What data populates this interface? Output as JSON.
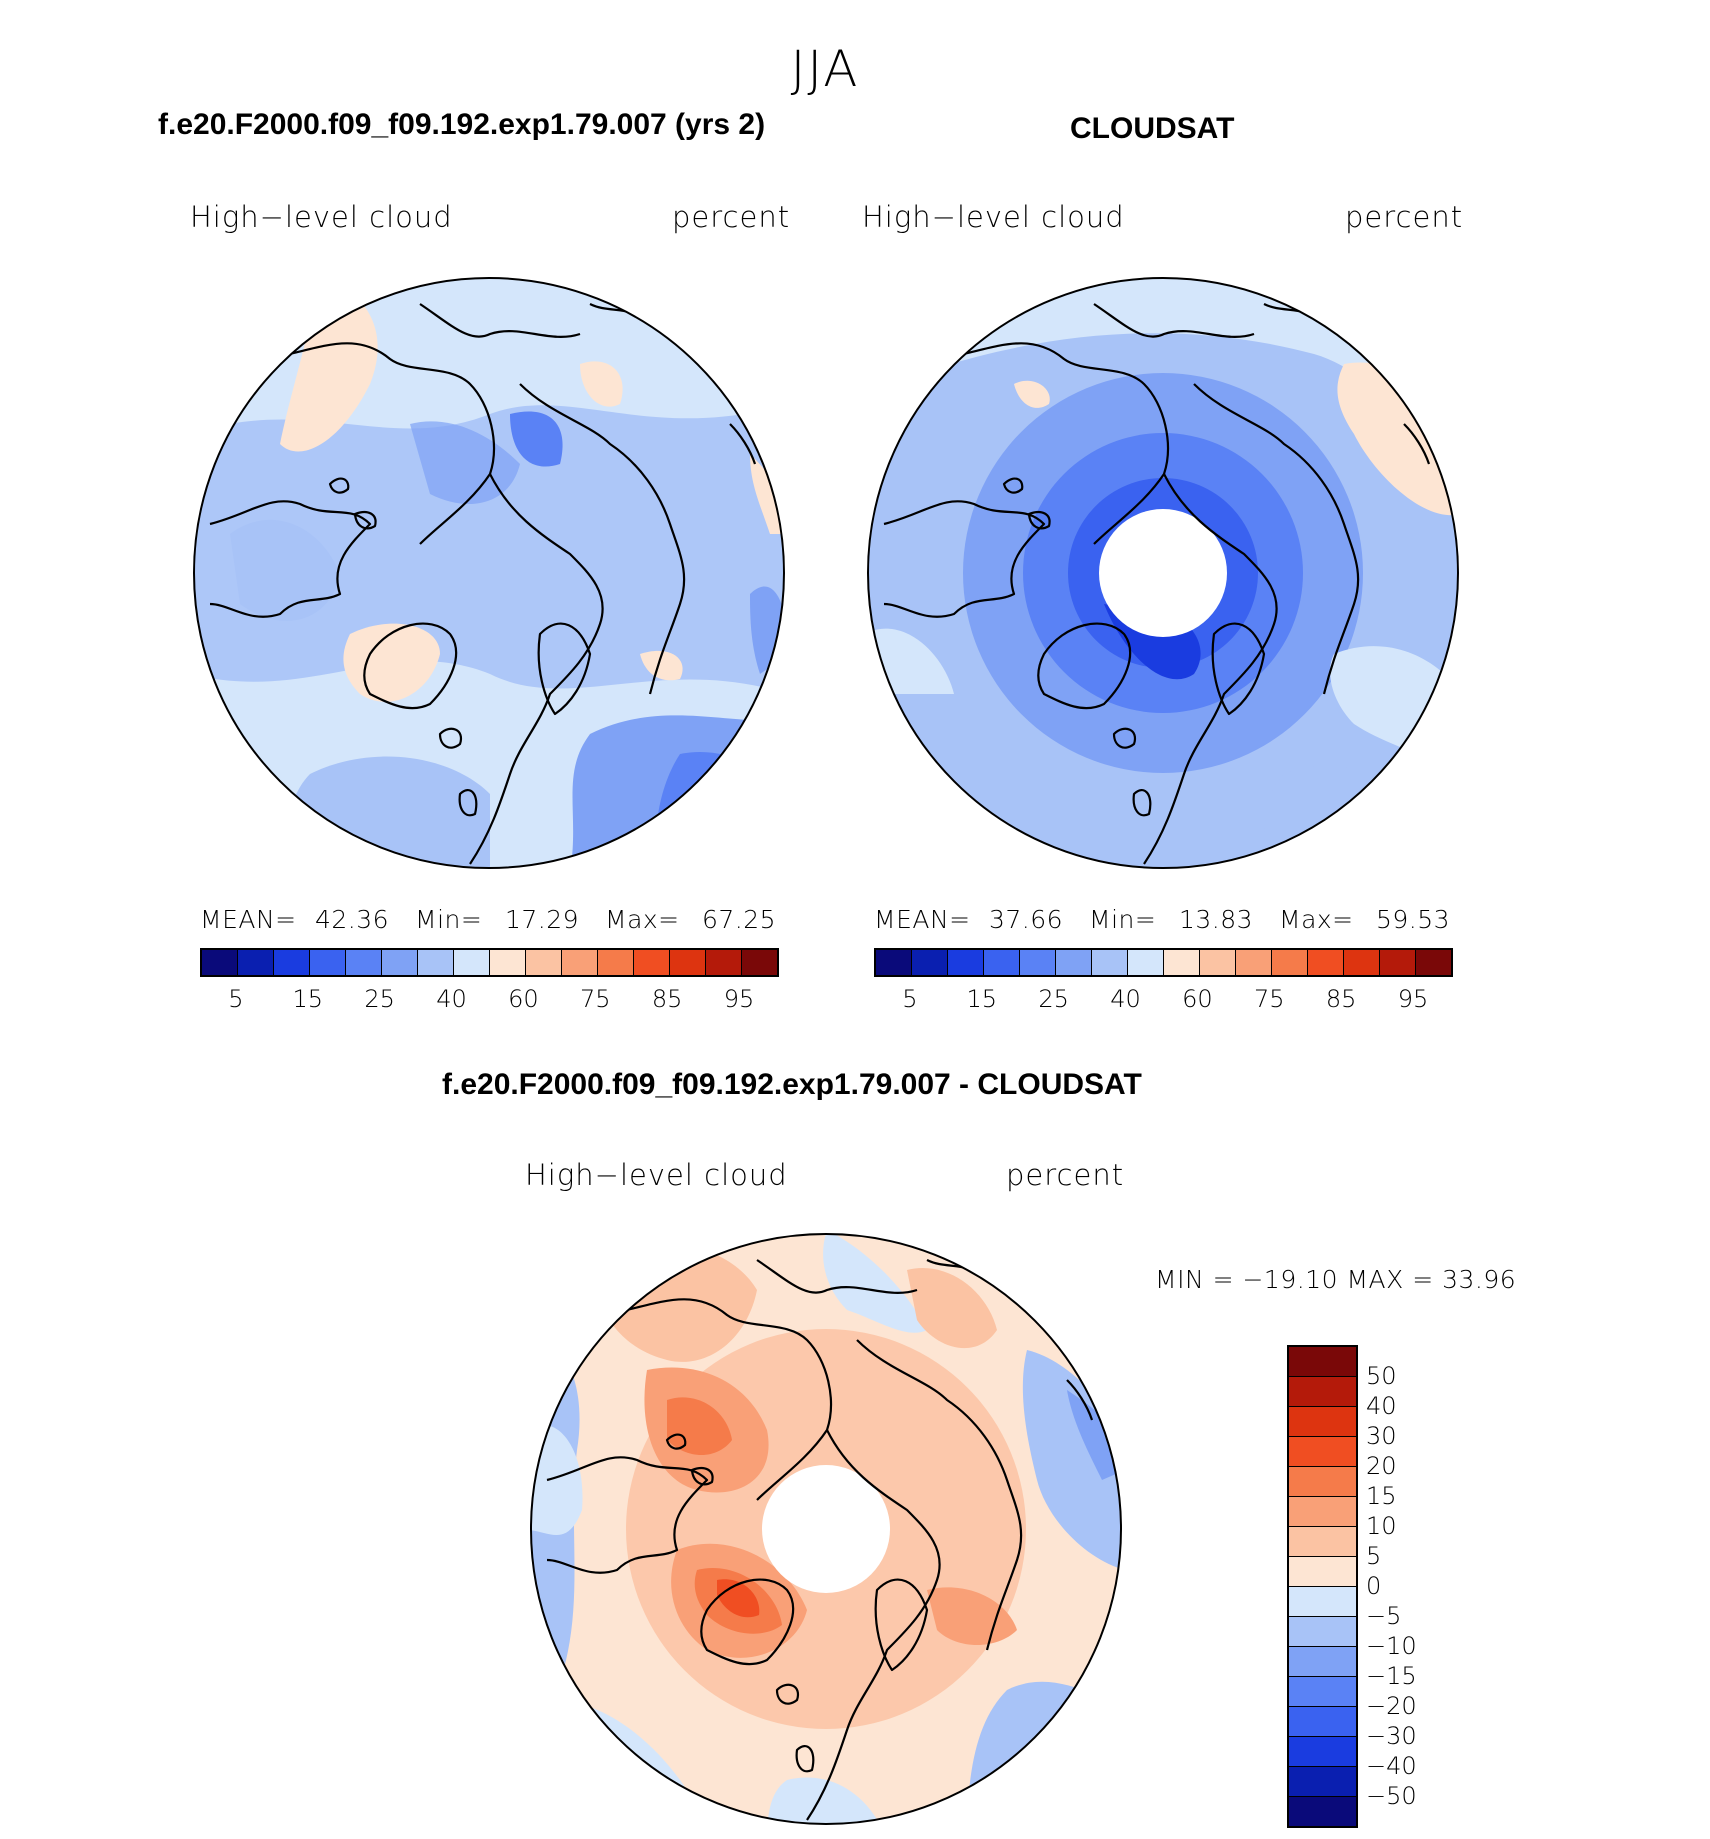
{
  "season": "JJA",
  "panels": {
    "left": {
      "title": "f.e20.F2000.f09_f09.192.exp1.79.007 (yrs 2)",
      "variable": "High−level cloud",
      "units": "percent",
      "mean_label": "MEAN=",
      "mean": "42.36",
      "min_label": "Min=",
      "min": "17.29",
      "max_label": "Max=",
      "max": "67.25"
    },
    "right": {
      "title": "CLOUDSAT",
      "variable": "High−level cloud",
      "units": "percent",
      "mean_label": "MEAN=",
      "mean": "37.66",
      "min_label": "Min=",
      "min": "13.83",
      "max_label": "Max=",
      "max": "59.53"
    },
    "diff": {
      "title": "f.e20.F2000.f09_f09.192.exp1.79.007 - CLOUDSAT",
      "variable": "High−level cloud",
      "units": "percent",
      "minmax_text": "MIN = −19.10  MAX =   33.96"
    }
  },
  "colorbar_abs": {
    "colors": [
      "#0a0a7a",
      "#0a1fb0",
      "#1a3ce0",
      "#3a62f0",
      "#5a82f5",
      "#7fa2f5",
      "#a8c3f7",
      "#d4e6fb",
      "#fde5d3",
      "#fbc3a3",
      "#f9a077",
      "#f57b4a",
      "#f04e22",
      "#dd3410",
      "#b41a0a",
      "#7a0808"
    ],
    "labels": [
      "5",
      "15",
      "25",
      "40",
      "60",
      "75",
      "85",
      "95"
    ]
  },
  "colorbar_diff": {
    "colors": [
      "#7a0808",
      "#b41a0a",
      "#dd3410",
      "#f04e22",
      "#f57b4a",
      "#f9a077",
      "#fbc3a3",
      "#fde5d3",
      "#d4e6fb",
      "#a8c3f7",
      "#7fa2f5",
      "#5a82f5",
      "#3a62f0",
      "#1a3ce0",
      "#0a1fb0",
      "#0a0a7a"
    ],
    "labels": [
      "50",
      "40",
      "30",
      "20",
      "15",
      "10",
      "5",
      "0",
      "−5",
      "−10",
      "−15",
      "−20",
      "−30",
      "−40",
      "−50"
    ]
  },
  "chart_data": [
    {
      "type": "heatmap",
      "title": "f.e20.F2000.f09_f09.192.exp1.79.007 (yrs 2)",
      "subtitle": "High−level cloud",
      "units": "percent",
      "projection": "north polar stereographic",
      "stats": {
        "mean": 42.36,
        "min": 17.29,
        "max": 67.25
      },
      "levels": [
        5,
        10,
        15,
        20,
        25,
        30,
        40,
        50,
        60,
        65,
        75,
        80,
        85,
        90,
        95
      ]
    },
    {
      "type": "heatmap",
      "title": "CLOUDSAT",
      "subtitle": "High−level cloud",
      "units": "percent",
      "projection": "north polar stereographic",
      "stats": {
        "mean": 37.66,
        "min": 13.83,
        "max": 59.53
      },
      "levels": [
        5,
        10,
        15,
        20,
        25,
        30,
        40,
        50,
        60,
        65,
        75,
        80,
        85,
        90,
        95
      ]
    },
    {
      "type": "heatmap",
      "title": "f.e20.F2000.f09_f09.192.exp1.79.007 - CLOUDSAT",
      "subtitle": "High−level cloud",
      "units": "percent",
      "projection": "north polar stereographic",
      "stats": {
        "min": -19.1,
        "max": 33.96
      },
      "levels": [
        -50,
        -40,
        -30,
        -20,
        -15,
        -10,
        -5,
        0,
        5,
        10,
        15,
        20,
        30,
        40,
        50
      ]
    }
  ]
}
